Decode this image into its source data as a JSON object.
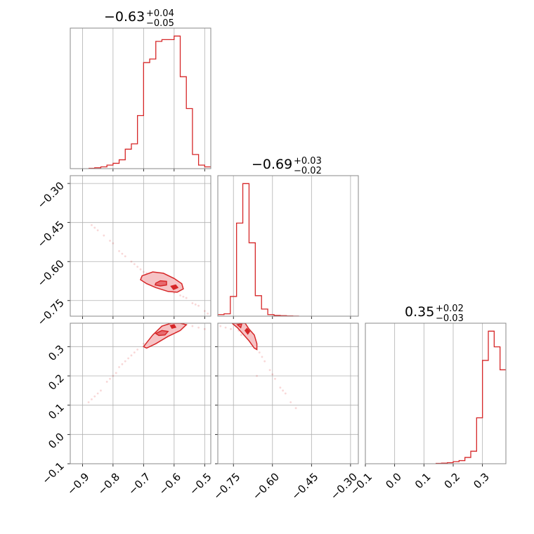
{
  "chart_data": [
    {
      "panel": "hist-p1",
      "type": "histogram",
      "title_value": "−0.63",
      "title_sup": "+0.04",
      "title_sub": "−0.05",
      "xlim": [
        -0.94,
        -0.48
      ],
      "xticks": [
        -0.9,
        -0.8,
        -0.7,
        -0.6,
        -0.5
      ],
      "xtick_labels": [
        "−0.9",
        "−0.8",
        "−0.7",
        "−0.6",
        "−0.5"
      ],
      "bins": [
        -0.88,
        -0.86,
        -0.84,
        -0.82,
        -0.8,
        -0.78,
        -0.76,
        -0.74,
        -0.72,
        -0.7,
        -0.68,
        -0.66,
        -0.64,
        -0.62,
        -0.6,
        -0.58,
        -0.56,
        -0.54,
        -0.52,
        -0.5,
        -0.48
      ],
      "counts": [
        0.2,
        0.5,
        1,
        2,
        3,
        5,
        11,
        14,
        30,
        60,
        62,
        72,
        73,
        73,
        75,
        52,
        34,
        8,
        2,
        1
      ]
    },
    {
      "panel": "hist-p2",
      "type": "histogram",
      "title_value": "−0.69",
      "title_sup": "+0.03",
      "title_sub": "−0.02",
      "xlim": [
        -0.81,
        -0.27
      ],
      "xticks": [
        -0.75,
        -0.6,
        -0.45,
        -0.3
      ],
      "xtick_labels": [
        "−0.75",
        "−0.60",
        "−0.45",
        "−0.30"
      ],
      "bins": [
        -0.81,
        -0.786,
        -0.762,
        -0.738,
        -0.714,
        -0.69,
        -0.666,
        -0.642,
        -0.618,
        -0.594,
        -0.57,
        -0.546,
        -0.522,
        -0.498
      ],
      "counts": [
        2,
        3,
        25,
        118,
        168,
        93,
        26,
        9,
        2,
        1,
        0.6,
        0.3,
        0.1
      ]
    },
    {
      "panel": "hist-p3",
      "type": "histogram",
      "title_value": "0.35",
      "title_sup": "+0.02",
      "title_sub": "−0.03",
      "xlim": [
        -0.1,
        0.38
      ],
      "xticks": [
        -0.1,
        0.0,
        0.1,
        0.2,
        0.3
      ],
      "xtick_labels": [
        "−0.1",
        "0.0",
        "0.1",
        "0.2",
        "0.3"
      ],
      "bins": [
        0.14,
        0.16,
        0.18,
        0.2,
        0.22,
        0.24,
        0.26,
        0.28,
        0.3,
        0.32,
        0.34,
        0.36,
        0.38
      ],
      "counts": [
        0.3,
        0.6,
        1,
        2,
        3,
        6,
        12,
        44,
        99,
        127,
        112,
        90
      ]
    },
    {
      "panel": "scatter-p1-p2",
      "type": "scatter",
      "xlim": [
        -0.94,
        -0.48
      ],
      "ylim": [
        -0.81,
        -0.27
      ],
      "yticks": [
        -0.75,
        -0.6,
        -0.45,
        -0.3
      ],
      "ytick_labels": [
        "−0.75",
        "−0.60",
        "−0.45",
        "−0.30"
      ],
      "points": [
        [
          -0.87,
          -0.46
        ],
        [
          -0.85,
          -0.48
        ],
        [
          -0.83,
          -0.5
        ],
        [
          -0.8,
          -0.53
        ],
        [
          -0.78,
          -0.56
        ],
        [
          -0.76,
          -0.58
        ],
        [
          -0.74,
          -0.6
        ],
        [
          -0.72,
          -0.62
        ],
        [
          -0.7,
          -0.64
        ],
        [
          -0.68,
          -0.65
        ],
        [
          -0.66,
          -0.67
        ],
        [
          -0.64,
          -0.68
        ],
        [
          -0.62,
          -0.7
        ],
        [
          -0.6,
          -0.72
        ],
        [
          -0.58,
          -0.73
        ],
        [
          -0.56,
          -0.74
        ],
        [
          -0.54,
          -0.76
        ],
        [
          -0.52,
          -0.77
        ],
        [
          -0.5,
          -0.79
        ],
        [
          -0.86,
          -0.47
        ],
        [
          -0.81,
          -0.52
        ],
        [
          -0.77,
          -0.57
        ],
        [
          -0.73,
          -0.61
        ],
        [
          -0.69,
          -0.645
        ],
        [
          -0.65,
          -0.675
        ],
        [
          -0.61,
          -0.71
        ],
        [
          -0.57,
          -0.735
        ],
        [
          -0.53,
          -0.765
        ],
        [
          -0.49,
          -0.8
        ],
        [
          -0.71,
          -0.63
        ]
      ],
      "contours": [
        [
          [
            -0.705,
            -0.655
          ],
          [
            -0.67,
            -0.64
          ],
          [
            -0.635,
            -0.645
          ],
          [
            -0.6,
            -0.665
          ],
          [
            -0.575,
            -0.685
          ],
          [
            -0.57,
            -0.705
          ],
          [
            -0.59,
            -0.718
          ],
          [
            -0.62,
            -0.715
          ],
          [
            -0.66,
            -0.7
          ],
          [
            -0.69,
            -0.685
          ],
          [
            -0.71,
            -0.67
          ]
        ],
        [
          [
            -0.66,
            -0.683
          ],
          [
            -0.645,
            -0.674
          ],
          [
            -0.625,
            -0.676
          ],
          [
            -0.625,
            -0.69
          ],
          [
            -0.645,
            -0.694
          ],
          [
            -0.662,
            -0.69
          ]
        ],
        [
          [
            -0.61,
            -0.695
          ],
          [
            -0.595,
            -0.69
          ],
          [
            -0.588,
            -0.7
          ],
          [
            -0.602,
            -0.707
          ]
        ]
      ]
    },
    {
      "panel": "scatter-p1-p3",
      "type": "scatter",
      "xlim": [
        -0.94,
        -0.48
      ],
      "ylim": [
        -0.1,
        0.38
      ],
      "yticks": [
        -0.1,
        0.0,
        0.1,
        0.2,
        0.3
      ],
      "ytick_labels": [
        "−0.1",
        "0.0",
        "0.1",
        "0.2",
        "0.3"
      ],
      "points": [
        [
          -0.88,
          0.11
        ],
        [
          -0.86,
          0.13
        ],
        [
          -0.84,
          0.15
        ],
        [
          -0.82,
          0.18
        ],
        [
          -0.8,
          0.2
        ],
        [
          -0.78,
          0.23
        ],
        [
          -0.76,
          0.25
        ],
        [
          -0.74,
          0.27
        ],
        [
          -0.72,
          0.29
        ],
        [
          -0.7,
          0.31
        ],
        [
          -0.68,
          0.32
        ],
        [
          -0.66,
          0.34
        ],
        [
          -0.64,
          0.35
        ],
        [
          -0.6,
          0.37
        ],
        [
          -0.56,
          0.375
        ],
        [
          -0.54,
          0.37
        ],
        [
          -0.52,
          0.365
        ],
        [
          -0.5,
          0.36
        ],
        [
          -0.85,
          0.14
        ],
        [
          -0.81,
          0.19
        ],
        [
          -0.77,
          0.24
        ],
        [
          -0.73,
          0.28
        ],
        [
          -0.69,
          0.3
        ],
        [
          -0.87,
          0.12
        ],
        [
          -0.79,
          0.21
        ],
        [
          -0.75,
          0.26
        ]
      ],
      "contours": [
        [
          [
            -0.7,
            0.3
          ],
          [
            -0.67,
            0.34
          ],
          [
            -0.64,
            0.37
          ],
          [
            -0.61,
            0.38
          ],
          [
            -0.58,
            0.38
          ],
          [
            -0.56,
            0.375
          ],
          [
            -0.58,
            0.355
          ],
          [
            -0.62,
            0.335
          ],
          [
            -0.66,
            0.31
          ],
          [
            -0.69,
            0.295
          ]
        ],
        [
          [
            -0.66,
            0.345
          ],
          [
            -0.64,
            0.355
          ],
          [
            -0.62,
            0.352
          ],
          [
            -0.63,
            0.34
          ],
          [
            -0.65,
            0.338
          ]
        ],
        [
          [
            -0.612,
            0.372
          ],
          [
            -0.6,
            0.375
          ],
          [
            -0.595,
            0.366
          ],
          [
            -0.607,
            0.363
          ]
        ]
      ]
    },
    {
      "panel": "scatter-p2-p3",
      "type": "scatter",
      "xlim": [
        -0.81,
        -0.27
      ],
      "ylim": [
        -0.1,
        0.38
      ],
      "points": [
        [
          -0.8,
          0.37
        ],
        [
          -0.78,
          0.365
        ],
        [
          -0.76,
          0.36
        ],
        [
          -0.73,
          0.355
        ],
        [
          -0.71,
          0.35
        ],
        [
          -0.69,
          0.33
        ],
        [
          -0.67,
          0.3
        ],
        [
          -0.65,
          0.28
        ],
        [
          -0.63,
          0.25
        ],
        [
          -0.61,
          0.22
        ],
        [
          -0.59,
          0.19
        ],
        [
          -0.57,
          0.16
        ],
        [
          -0.55,
          0.14
        ],
        [
          -0.53,
          0.11
        ],
        [
          -0.51,
          0.09
        ],
        [
          -0.74,
          0.37
        ],
        [
          -0.68,
          0.31
        ],
        [
          -0.64,
          0.265
        ],
        [
          -0.6,
          0.205
        ],
        [
          -0.56,
          0.15
        ],
        [
          -0.66,
          0.2
        ],
        [
          -0.72,
          0.34
        ]
      ],
      "contours": [
        [
          [
            -0.755,
            0.38
          ],
          [
            -0.735,
            0.365
          ],
          [
            -0.715,
            0.345
          ],
          [
            -0.69,
            0.32
          ],
          [
            -0.67,
            0.295
          ],
          [
            -0.66,
            0.29
          ],
          [
            -0.66,
            0.31
          ],
          [
            -0.67,
            0.34
          ],
          [
            -0.69,
            0.36
          ],
          [
            -0.705,
            0.38
          ]
        ],
        [
          [
            -0.735,
            0.375
          ],
          [
            -0.722,
            0.365
          ],
          [
            -0.718,
            0.378
          ]
        ],
        [
          [
            -0.705,
            0.355
          ],
          [
            -0.695,
            0.343
          ],
          [
            -0.688,
            0.352
          ],
          [
            -0.698,
            0.362
          ]
        ]
      ]
    }
  ]
}
